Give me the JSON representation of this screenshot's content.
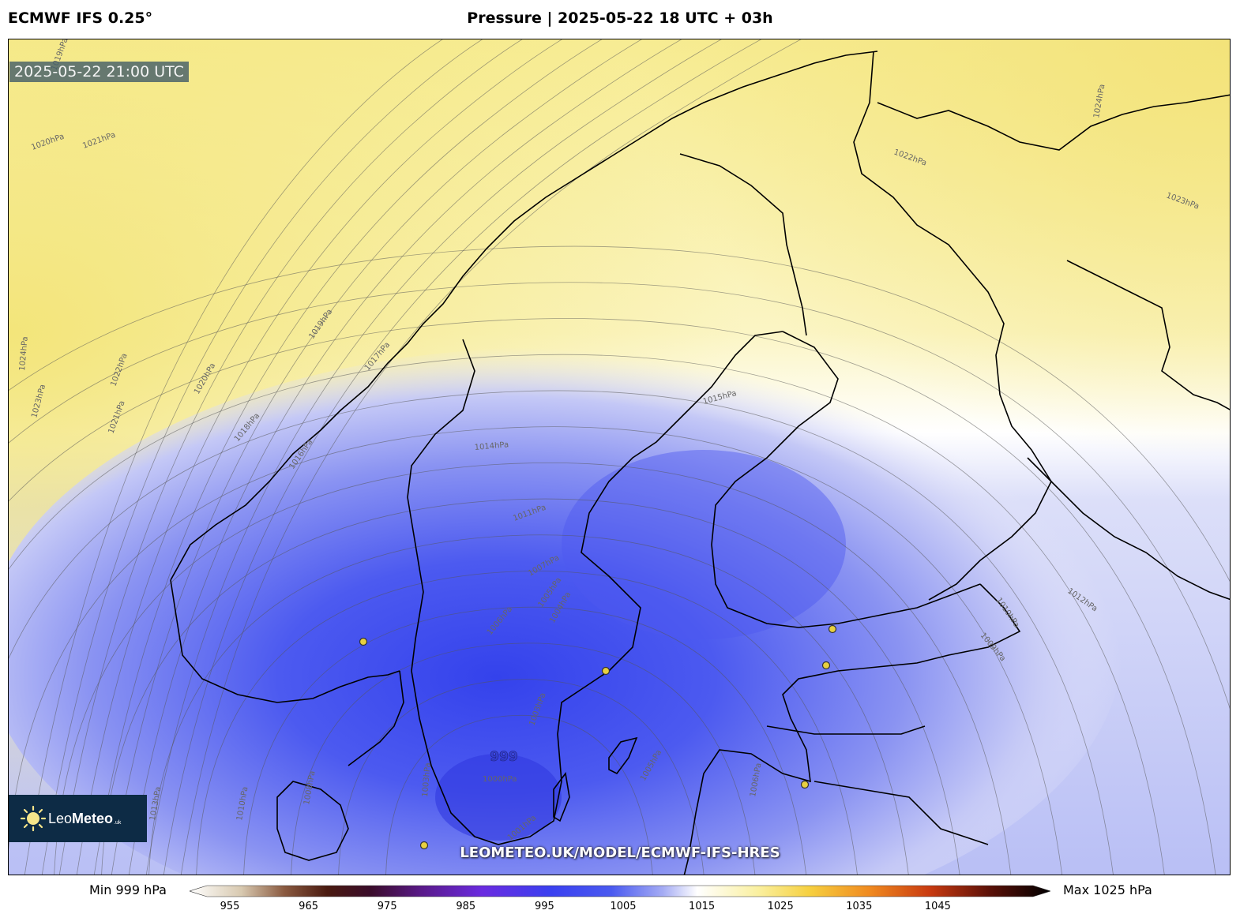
{
  "header": {
    "model": "ECMWF IFS 0.25°",
    "title": "Pressure | 2025-05-22 18 UTC + 03h"
  },
  "map": {
    "valid_time": "2025-05-22 21:00 UTC",
    "watermark": "LEOMETEO.UK/MODEL/ECMWF-IFS-HRES",
    "low_center_label": "999",
    "logo": {
      "brand_light": "Leo",
      "brand_bold": "Meteo",
      "suffix": ".uk"
    },
    "isobar_labels": [
      "1020hPa",
      "1021hPa",
      "1019hPa",
      "1024hPa",
      "1022hPa",
      "1023hPa",
      "1021hPa",
      "1020hPa",
      "1019hPa",
      "1017hPa",
      "1018hPa",
      "1016hPa",
      "1014hPa",
      "1015hPa",
      "1011hPa",
      "1007hPa",
      "1006hPa",
      "1005hPa",
      "1004hPa",
      "1003hPa",
      "1000hPa",
      "1001hPa",
      "1003hPa",
      "1005hPa",
      "1006hPa",
      "1008hPa",
      "1010hPa",
      "1013hPa",
      "1022hPa",
      "1023hPa",
      "1024hPa",
      "1012hPa",
      "1010hPa",
      "1009hPa"
    ],
    "colors": {
      "high": "#f6eb8e",
      "neutral": "#ffffff",
      "low": "#3e4ff0",
      "land_outline": "#000000",
      "city_dot": "#e8d040"
    }
  },
  "colorbar": {
    "min_label": "Min 999 hPa",
    "max_label": "Max 1025 hPa",
    "ticks": [
      "955",
      "965",
      "975",
      "985",
      "995",
      "1005",
      "1015",
      "1025",
      "1035",
      "1045"
    ]
  }
}
